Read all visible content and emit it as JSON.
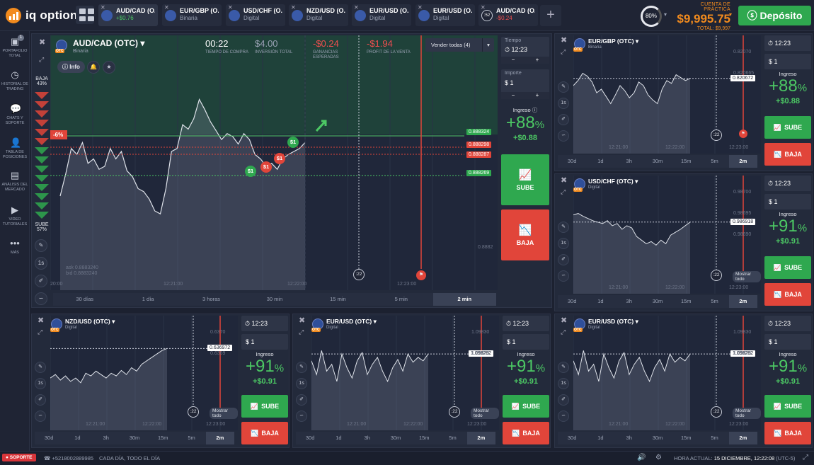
{
  "brand": {
    "name": "iq option"
  },
  "tabs": [
    {
      "name": "AUD/CAD (O...",
      "value": "+$0.76",
      "kind": "pos"
    },
    {
      "name": "EUR/GBP (O...",
      "value": "Binaria",
      "kind": "sub"
    },
    {
      "name": "USD/CHF (O...",
      "value": "Digital",
      "kind": "sub"
    },
    {
      "name": "NZD/USD (O...",
      "value": "Digital",
      "kind": "sub"
    },
    {
      "name": "EUR/USD (O...",
      "value": "Digital",
      "kind": "sub"
    },
    {
      "name": "EUR/USD (O...",
      "value": "Digital",
      "kind": "sub"
    },
    {
      "name": "AUD/CAD (O...",
      "value": "-$0.24",
      "kind": "neg",
      "timer": ":52"
    }
  ],
  "header": {
    "gauge": "80%",
    "account_label": "CUENTA DE PRÁCTICA",
    "balance": "$9,995.75",
    "total": "TOTAL: $9,997",
    "deposit": "Depósito"
  },
  "sidebar": [
    {
      "icon": "portfolio-icon",
      "label": "PORTAFOLIO TOTAL",
      "badge": "1"
    },
    {
      "icon": "history-icon",
      "label": "HISTORIAL DE TRADING"
    },
    {
      "icon": "chat-icon",
      "label": "CHATS Y SOPORTE"
    },
    {
      "icon": "table-icon",
      "label": "TABLA DE POSICIONES"
    },
    {
      "icon": "analysis-icon",
      "label": "ANÁLISIS DEL MERCADO"
    },
    {
      "icon": "video-icon",
      "label": "VIDEO TUTORIALES"
    },
    {
      "icon": "more-icon",
      "label": "MÁS"
    }
  ],
  "main": {
    "asset": "AUD/CAD (OTC)",
    "type": "Binaria",
    "info": "Info",
    "stats": [
      {
        "value": "00:22",
        "label": "TIEMPO DE COMPRA"
      },
      {
        "value": "$4.00",
        "label": "INVERSIÓN TOTAL"
      },
      {
        "value": "-$0.24",
        "label": "GANANCIAS ESPERADAS"
      },
      {
        "value": "-$1.94",
        "label": "PROFIT DE LA VENTA"
      }
    ],
    "sell_all": "Vender todas (4)",
    "sentiment": {
      "low_label": "BAJA",
      "low_pct": "43%",
      "high_label": "SUBE",
      "high_pct": "57%",
      "low": 0.43
    },
    "change_badge": "-6%",
    "prices": [
      "0.888324",
      "0.888298",
      "0.888287",
      "0.888269",
      "0.8882"
    ],
    "ask": "ask 0.8883240",
    "bid": "bid 0.8883240",
    "times": [
      "20:00",
      "12:21:00",
      "12:22:00",
      "12:23:00"
    ],
    "timer": ":22",
    "timeframes": [
      "30 días",
      "1 día",
      "3 horas",
      "30 min",
      "15 min",
      "5 min",
      "2 min"
    ],
    "trade_badges": [
      "$1",
      "$1",
      "$1",
      "$1"
    ],
    "time_label": "Tiempo",
    "time": "12:23",
    "amount_label": "Importe",
    "amount": "$ 1",
    "income_label": "Ingreso",
    "income_pct": "+88",
    "income_money": "+$0.88",
    "up": "SUBE",
    "down": "BAJA",
    "series": [
      0.3,
      0.45,
      0.62,
      0.58,
      0.66,
      0.52,
      0.55,
      0.48,
      0.5,
      0.62,
      0.55,
      0.6,
      0.47,
      0.43,
      0.35,
      0.33,
      0.28,
      0.2,
      0.18,
      0.35,
      0.6,
      0.62,
      0.78,
      0.75,
      0.82,
      0.95,
      0.88,
      0.8,
      0.74,
      0.68,
      0.72,
      0.7,
      0.65,
      0.72,
      0.68,
      0.58,
      0.55,
      0.5,
      0.52,
      0.48,
      0.55,
      0.58,
      0.6,
      0.62,
      0.66
    ]
  },
  "minis": [
    {
      "asset": "EUR/GBP (OTC)",
      "type": "Binaria",
      "time": "12:23",
      "income_pct": "+88",
      "income_money": "+$0.88",
      "price": "0.820672",
      "axis": [
        "0.82070",
        "0.820665"
      ],
      "times": [
        "12:21:00",
        "12:22:00",
        "12:23:00"
      ],
      "timer": ":22",
      "show_all": "",
      "series": [
        0.55,
        0.62,
        0.72,
        0.68,
        0.6,
        0.45,
        0.5,
        0.4,
        0.3,
        0.42,
        0.55,
        0.48,
        0.38,
        0.45,
        0.6,
        0.55,
        0.42,
        0.35,
        0.3,
        0.5,
        0.62,
        0.58,
        0.7,
        0.66,
        0.62,
        0.65
      ]
    },
    {
      "asset": "USD/CHF (OTC)",
      "type": "Digital",
      "time": "12:23",
      "income_pct": "+91",
      "income_money": "+$0.91",
      "price": "0.986918",
      "axis": [
        "0.98700",
        "0.98695",
        "0.98690"
      ],
      "times": [
        "12:21:00",
        "12:22:00",
        "12:23:00"
      ],
      "timer": ":22",
      "show_all": "Mostrar todo",
      "series": [
        0.7,
        0.72,
        0.68,
        0.65,
        0.62,
        0.6,
        0.58,
        0.62,
        0.55,
        0.58,
        0.5,
        0.55,
        0.52,
        0.4,
        0.35,
        0.3,
        0.33,
        0.28,
        0.35,
        0.3,
        0.42,
        0.46,
        0.5,
        0.55,
        0.6
      ]
    },
    {
      "asset": "NZD/USD (OTC)",
      "type": "Digital",
      "time": "12:23",
      "income_pct": "+91",
      "income_money": "+$0.91",
      "price": "0.636972",
      "axis": [
        "0.6370",
        "0.6369"
      ],
      "times": [
        "12:21:00",
        "12:22:00",
        "12:23:00"
      ],
      "timer": ":22",
      "show_all": "Mostrar todo",
      "series": [
        0.35,
        0.4,
        0.32,
        0.38,
        0.3,
        0.35,
        0.28,
        0.42,
        0.38,
        0.45,
        0.4,
        0.35,
        0.42,
        0.38,
        0.46,
        0.4,
        0.5,
        0.45,
        0.55,
        0.6,
        0.65,
        0.7,
        0.75,
        0.78
      ]
    },
    {
      "asset": "EUR/USD (OTC)",
      "type": "Digital",
      "time": "12:23",
      "income_pct": "+91",
      "income_money": "+$0.91",
      "price": "1.098282",
      "axis": [
        "1.09830",
        "1.09825"
      ],
      "times": [
        "12:21:00",
        "12:22:00",
        "12:23:00"
      ],
      "timer": ":22",
      "show_all": "Mostrar todo",
      "series": [
        0.6,
        0.4,
        0.75,
        0.45,
        0.55,
        0.3,
        0.7,
        0.5,
        0.35,
        0.6,
        0.72,
        0.4,
        0.55,
        0.65,
        0.45,
        0.3,
        0.5,
        0.62,
        0.45,
        0.7,
        0.58,
        0.65,
        0.6,
        0.7
      ]
    },
    {
      "asset": "EUR/USD (OTC)",
      "type": "Digital",
      "time": "12:23",
      "income_pct": "+91",
      "income_money": "+$0.91",
      "price": "1.098282",
      "axis": [
        "1.09830",
        "1.09825"
      ],
      "times": [
        "12:21:00",
        "12:22:00",
        "12:23:00"
      ],
      "timer": ":22",
      "show_all": "Mostrar todo",
      "series": [
        0.6,
        0.4,
        0.75,
        0.45,
        0.55,
        0.3,
        0.7,
        0.5,
        0.35,
        0.6,
        0.72,
        0.4,
        0.55,
        0.65,
        0.45,
        0.3,
        0.5,
        0.62,
        0.45,
        0.7,
        0.58,
        0.65,
        0.6,
        0.7
      ]
    }
  ],
  "mini_timeframes": [
    "30d",
    "1d",
    "3h",
    "30m",
    "15m",
    "5m",
    "2m"
  ],
  "mini_up": "SUBE",
  "mini_down": "BAJA",
  "income_label": "Ingreso",
  "footer": {
    "support": "SOPORTE",
    "phone": "+5218002889985",
    "slogan": "CADA DÍA, TODO EL DÍA",
    "time_label": "HORA ACTUAL:",
    "time": "15 DICIEMBRE, 12:22:08",
    "tz": "(UTC-5)"
  },
  "colors": {
    "up": "#2fa84f",
    "down": "#e1453a",
    "accent": "#f28b1e"
  }
}
